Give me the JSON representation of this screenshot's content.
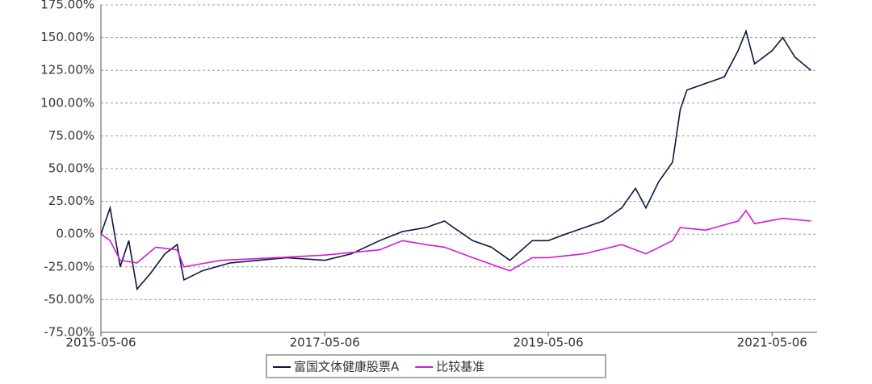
{
  "chart_data": {
    "type": "line",
    "series": [
      {
        "name": "富国文体健康股票A",
        "color": "#0d1540",
        "x": [
          "2015-05-06",
          "2015-06-05",
          "2015-07-08",
          "2015-08-05",
          "2015-09-01",
          "2015-10-15",
          "2015-12-01",
          "2016-01-10",
          "2016-02-01",
          "2016-04-01",
          "2016-07-01",
          "2016-10-01",
          "2017-01-01",
          "2017-05-06",
          "2017-08-01",
          "2017-11-01",
          "2018-01-15",
          "2018-04-01",
          "2018-06-01",
          "2018-07-01",
          "2018-09-01",
          "2018-11-01",
          "2019-01-01",
          "2019-03-15",
          "2019-05-06",
          "2019-07-01",
          "2019-09-01",
          "2019-11-01",
          "2020-01-01",
          "2020-02-15",
          "2020-03-20",
          "2020-05-01",
          "2020-06-15",
          "2020-07-10",
          "2020-08-01",
          "2020-10-01",
          "2020-12-01",
          "2021-01-15",
          "2021-02-10",
          "2021-03-10",
          "2021-05-06",
          "2021-06-10",
          "2021-07-20",
          "2021-09-10"
        ],
        "values": [
          0,
          20,
          -25,
          -5,
          -42,
          -30,
          -15,
          -8,
          -35,
          -28,
          -22,
          -20,
          -18,
          -20,
          -15,
          -5,
          2,
          5,
          10,
          5,
          -5,
          -10,
          -20,
          -5,
          -5,
          0,
          5,
          10,
          20,
          35,
          20,
          40,
          55,
          95,
          110,
          115,
          120,
          140,
          155,
          130,
          140,
          150,
          135,
          125
        ]
      },
      {
        "name": "比较基准",
        "color": "#d21ad6",
        "x": [
          "2015-05-06",
          "2015-06-05",
          "2015-07-08",
          "2015-09-01",
          "2015-11-01",
          "2016-01-10",
          "2016-02-01",
          "2016-06-01",
          "2016-12-01",
          "2017-05-06",
          "2017-11-01",
          "2018-01-15",
          "2018-04-01",
          "2018-06-01",
          "2018-09-01",
          "2019-01-01",
          "2019-03-15",
          "2019-05-06",
          "2019-09-01",
          "2020-01-01",
          "2020-03-20",
          "2020-06-15",
          "2020-07-10",
          "2020-10-01",
          "2021-01-15",
          "2021-02-10",
          "2021-03-10",
          "2021-06-10",
          "2021-09-10"
        ],
        "values": [
          0,
          -5,
          -20,
          -22,
          -10,
          -12,
          -25,
          -20,
          -18,
          -16,
          -12,
          -5,
          -8,
          -10,
          -18,
          -28,
          -18,
          -18,
          -15,
          -8,
          -15,
          -5,
          5,
          3,
          10,
          18,
          8,
          12,
          10
        ]
      }
    ],
    "xlim": [
      "2015-05-06",
      "2021-09-30"
    ],
    "xticks": [
      "2015-05-06",
      "2017-05-06",
      "2019-05-06",
      "2021-05-06"
    ],
    "ylim": [
      -75,
      175
    ],
    "yticks": [
      {
        "value": -75,
        "label": "-75.00%"
      },
      {
        "value": -50,
        "label": "-50.00%"
      },
      {
        "value": -25,
        "label": "-25.00%"
      },
      {
        "value": 0,
        "label": "0.00%"
      },
      {
        "value": 25,
        "label": "25.00%"
      },
      {
        "value": 50,
        "label": "50.00%"
      },
      {
        "value": 75,
        "label": "75.00%"
      },
      {
        "value": 100,
        "label": "100.00%"
      },
      {
        "value": 125,
        "label": "125.00%"
      },
      {
        "value": 150,
        "label": "150.00%"
      },
      {
        "value": 175,
        "label": "175.00%"
      }
    ],
    "grid": true
  }
}
